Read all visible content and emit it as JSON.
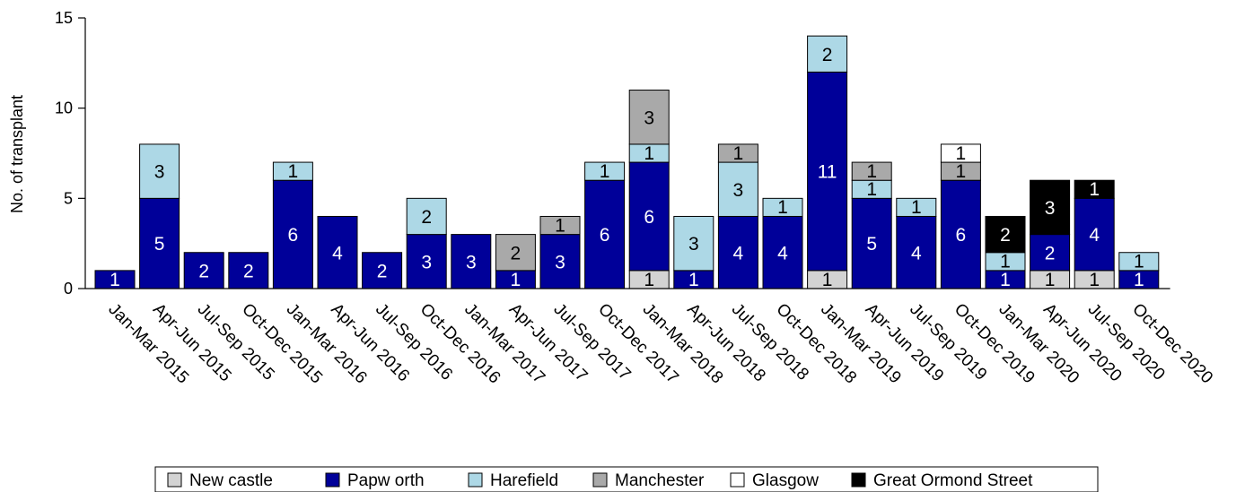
{
  "chart_data": {
    "type": "bar",
    "stacked": true,
    "title": "",
    "xlabel": "",
    "ylabel": "No. of transplant",
    "ylim": [
      0,
      15
    ],
    "yticks": [
      0,
      5,
      10,
      15
    ],
    "grid": false,
    "legend_position": "bottom",
    "categories": [
      "Jan-Mar 2015",
      "Apr-Jun 2015",
      "Jul-Sep 2015",
      "Oct-Dec 2015",
      "Jan-Mar 2016",
      "Apr-Jun 2016",
      "Jul-Sep 2016",
      "Oct-Dec 2016",
      "Jan-Mar 2017",
      "Apr-Jun 2017",
      "Jul-Sep 2017",
      "Oct-Dec 2017",
      "Jan-Mar 2018",
      "Apr-Jun 2018",
      "Jul-Sep 2018",
      "Oct-Dec 2018",
      "Jan-Mar 2019",
      "Apr-Jun 2019",
      "Jul-Sep 2019",
      "Oct-Dec 2019",
      "Jan-Mar 2020",
      "Apr-Jun 2020",
      "Jul-Sep 2020",
      "Oct-Dec 2020"
    ],
    "series": [
      {
        "name": "New castle",
        "color": "#d3d3d3",
        "label_color": "#000000",
        "values": [
          0,
          0,
          0,
          0,
          0,
          0,
          0,
          0,
          0,
          0,
          0,
          0,
          1,
          0,
          0,
          0,
          1,
          0,
          0,
          0,
          0,
          1,
          1,
          0
        ]
      },
      {
        "name": "Papw orth",
        "color": "#000099",
        "label_color": "#ffffff",
        "values": [
          1,
          5,
          2,
          2,
          6,
          4,
          2,
          3,
          3,
          1,
          3,
          6,
          6,
          1,
          4,
          4,
          11,
          5,
          4,
          6,
          1,
          2,
          4,
          1
        ]
      },
      {
        "name": "Harefield",
        "color": "#add8e6",
        "label_color": "#000000",
        "values": [
          0,
          3,
          0,
          0,
          1,
          0,
          0,
          2,
          0,
          0,
          0,
          1,
          1,
          3,
          3,
          1,
          2,
          1,
          1,
          0,
          1,
          0,
          0,
          1
        ]
      },
      {
        "name": "Manchester",
        "color": "#a9a9a9",
        "label_color": "#000000",
        "values": [
          0,
          0,
          0,
          0,
          0,
          0,
          0,
          0,
          0,
          2,
          1,
          0,
          3,
          0,
          1,
          0,
          0,
          1,
          0,
          1,
          0,
          0,
          0,
          0
        ]
      },
      {
        "name": "Glasgow",
        "color": "#ffffff",
        "label_color": "#000000",
        "values": [
          0,
          0,
          0,
          0,
          0,
          0,
          0,
          0,
          0,
          0,
          0,
          0,
          0,
          0,
          0,
          0,
          0,
          0,
          0,
          1,
          0,
          0,
          0,
          0
        ]
      },
      {
        "name": "Great Ormond Street",
        "color": "#000000",
        "label_color": "#ffffff",
        "values": [
          0,
          0,
          0,
          0,
          0,
          0,
          0,
          0,
          0,
          0,
          0,
          0,
          0,
          0,
          0,
          0,
          0,
          0,
          0,
          0,
          2,
          3,
          1,
          0
        ]
      }
    ]
  }
}
